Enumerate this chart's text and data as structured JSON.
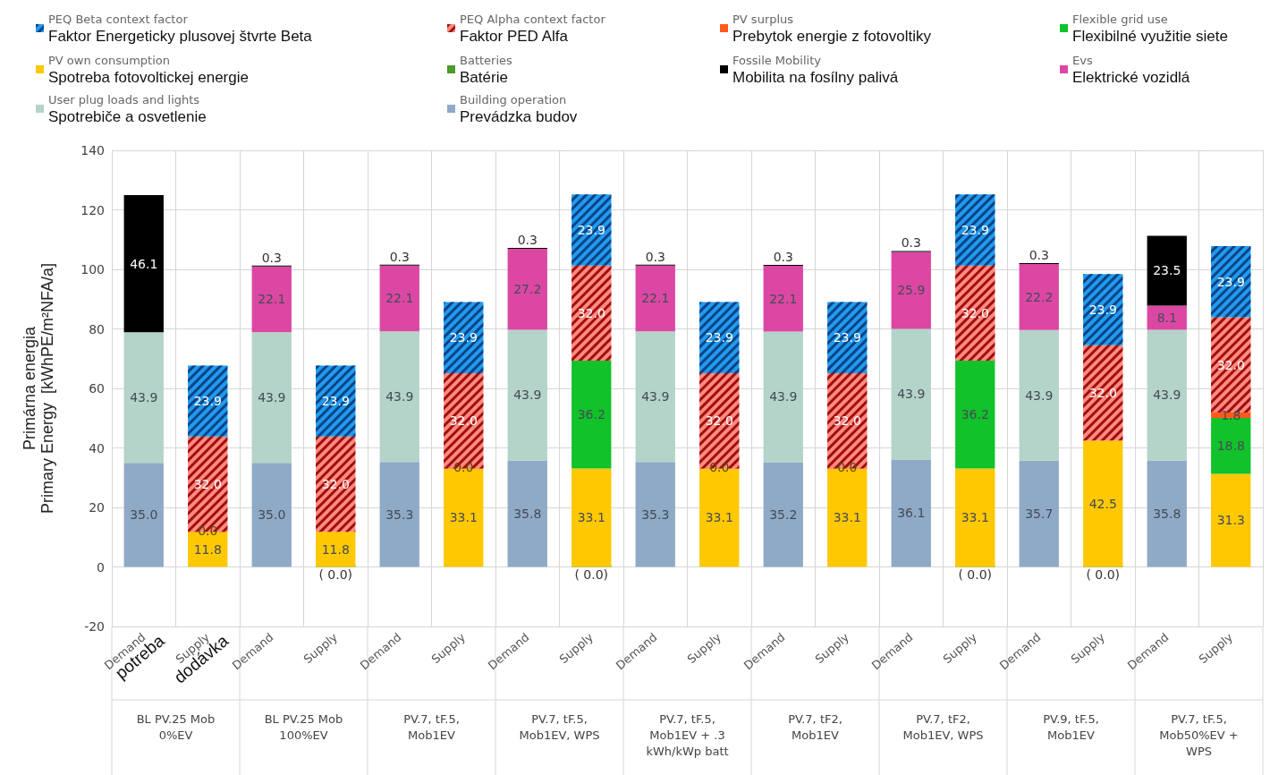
{
  "chart_data": {
    "type": "bar",
    "stacked": true,
    "ylabel": "Primárna energia\nPrimary Energy  [kWhPE/m²NFA/a]",
    "categories": [
      "Demand",
      "Supply",
      "Demand",
      "Supply",
      "Demand",
      "Supply",
      "Demand",
      "Supply",
      "Demand",
      "Supply",
      "Demand",
      "Supply",
      "Demand",
      "Supply",
      "Demand",
      "Supply",
      "Demand",
      "Supply"
    ],
    "ylim": [
      -20,
      140
    ],
    "yticks": [
      -20,
      0,
      20,
      40,
      60,
      80,
      100,
      120,
      140
    ],
    "grid": true,
    "legend": "top",
    "series": [
      {
        "name": "Building operation\nPrevádzka budov",
        "color": "#8faac6",
        "values": [
          35.0,
          null,
          35.0,
          null,
          35.3,
          null,
          35.8,
          null,
          35.3,
          null,
          35.2,
          null,
          36.1,
          null,
          35.7,
          null,
          35.8,
          null
        ],
        "value_labels": [
          "35.0",
          null,
          "35.0",
          null,
          "35.3",
          null,
          "35.8",
          null,
          "35.3",
          null,
          "35.2",
          null,
          "36.1",
          null,
          "35.7",
          null,
          "35.8",
          null
        ]
      },
      {
        "name": "User plug loads and lights\nSpotrebiče a osvetlenie",
        "color": "#b4d3c9",
        "values": [
          43.9,
          null,
          43.9,
          null,
          43.9,
          null,
          43.9,
          null,
          43.9,
          null,
          43.9,
          null,
          43.9,
          null,
          43.9,
          null,
          43.9,
          null
        ],
        "value_labels": [
          "43.9",
          null,
          "43.9",
          null,
          "43.9",
          null,
          "43.9",
          null,
          "43.9",
          null,
          "43.9",
          null,
          "43.9",
          null,
          "43.9",
          null,
          "43.9",
          null
        ]
      },
      {
        "name": "Evs\nElektrické vozidlá",
        "color": "#dc47a4",
        "values": [
          null,
          null,
          22.1,
          null,
          22.1,
          null,
          27.2,
          null,
          22.1,
          null,
          22.1,
          null,
          25.9,
          null,
          22.2,
          null,
          8.1,
          null
        ],
        "value_labels": [
          null,
          null,
          "22.1",
          null,
          "22.1",
          null,
          "27.2",
          null,
          "22.1",
          null,
          "22.1",
          null,
          "25.9",
          null,
          "22.2",
          null,
          "8.1",
          null
        ]
      },
      {
        "name": "Fossile Mobility\nMobilita na fosílny palivá",
        "color": "#000000",
        "values": [
          46.1,
          null,
          0.3,
          null,
          0.3,
          null,
          0.3,
          null,
          0.3,
          null,
          0.3,
          null,
          0.3,
          null,
          0.3,
          null,
          23.5,
          null
        ],
        "value_labels": [
          "46.1",
          null,
          "0.3",
          null,
          "0.3",
          null,
          "0.3",
          null,
          "0.3",
          null,
          "0.3",
          null,
          "0.3",
          null,
          "0.3",
          null,
          "23.5",
          null
        ]
      },
      {
        "name": "Batteries\nBatérie",
        "color": "#4c9a2a",
        "values": [
          null,
          null,
          null,
          0,
          null,
          null,
          null,
          0,
          null,
          null,
          null,
          null,
          null,
          0,
          null,
          0,
          null,
          null
        ],
        "value_labels": [
          null,
          null,
          null,
          "( 0.0)",
          null,
          null,
          null,
          "( 0.0)",
          null,
          null,
          null,
          null,
          null,
          "( 0.0)",
          null,
          "( 0.0)",
          null,
          null
        ]
      },
      {
        "name": "PV own consumption\nSpotreba fotovoltickej energie",
        "color": "#ffc800",
        "values": [
          null,
          11.8,
          null,
          11.8,
          null,
          33.1,
          null,
          33.1,
          null,
          33.1,
          null,
          33.1,
          null,
          33.1,
          null,
          42.5,
          null,
          31.3
        ],
        "value_labels": [
          null,
          "11.8",
          null,
          "11.8",
          null,
          "33.1",
          null,
          "33.1",
          null,
          "33.1",
          null,
          "33.1",
          null,
          "33.1",
          null,
          "42.5",
          null,
          "31.3"
        ]
      },
      {
        "name": "Flexible grid use\nFlexibilné využitie siete",
        "color": "#11c22a",
        "values": [
          null,
          null,
          null,
          null,
          null,
          null,
          null,
          36.2,
          null,
          null,
          null,
          null,
          null,
          36.2,
          null,
          null,
          null,
          18.8
        ],
        "value_labels": [
          null,
          null,
          null,
          null,
          null,
          null,
          null,
          "36.2",
          null,
          null,
          null,
          null,
          null,
          "36.2",
          null,
          null,
          null,
          "18.8"
        ]
      },
      {
        "name": "PV surplus\nPrebytok energie z fotovoltiky",
        "color": "#ff5a1a",
        "values": [
          null,
          0,
          null,
          null,
          null,
          0,
          null,
          null,
          null,
          0,
          null,
          0,
          null,
          null,
          null,
          null,
          null,
          1.8
        ],
        "value_labels": [
          null,
          "0.0",
          null,
          null,
          null,
          "0.0",
          null,
          null,
          null,
          "0.0",
          null,
          "0.0",
          null,
          null,
          null,
          null,
          null,
          "1.8"
        ]
      },
      {
        "name": "PEQ Alpha context factor\nFaktor PED Alfa",
        "color": "#ff8a80",
        "values": [
          null,
          32.0,
          null,
          32.0,
          null,
          32.0,
          null,
          32.0,
          null,
          32.0,
          null,
          32.0,
          null,
          32.0,
          null,
          32.0,
          null,
          32.0
        ],
        "value_labels": [
          null,
          "32.0",
          null,
          "32.0",
          null,
          "32.0",
          null,
          "32.0",
          null,
          "32.0",
          null,
          "32.0",
          null,
          "32.0",
          null,
          "32.0",
          null,
          "32.0"
        ]
      },
      {
        "name": "PEQ Beta context factor\nFaktor Energeticky plusovej štvrte Beta",
        "color": "#1f9bf0",
        "values": [
          null,
          23.9,
          null,
          23.9,
          null,
          23.9,
          null,
          23.9,
          null,
          23.9,
          null,
          23.9,
          null,
          23.9,
          null,
          23.9,
          null,
          23.9
        ],
        "value_labels": [
          null,
          "23.9",
          null,
          "23.9",
          null,
          "23.9",
          null,
          "23.9",
          null,
          "23.9",
          null,
          "23.9",
          null,
          "23.9",
          null,
          "23.9",
          null,
          "23.9"
        ]
      }
    ],
    "annotations": [
      "potreba",
      "dodávka",
      "BL PV.25 Mob\n0%EV",
      "BL PV.25 Mob\n100%EV",
      "PV.7, tF.5,\nMob1EV",
      "PV.7, tF.5,\nMob1EV, WPS",
      "PV.7, tF.5,\nMob1EV + .3\nkWh/kWp batt",
      "PV.7, tF2,\nMob1EV",
      "PV.7, tF2,\nMob1EV, WPS",
      "PV.9, tF.5,\nMob1EV",
      "PV.7, tF.5,\nMob50%EV +\nWPS"
    ]
  }
}
